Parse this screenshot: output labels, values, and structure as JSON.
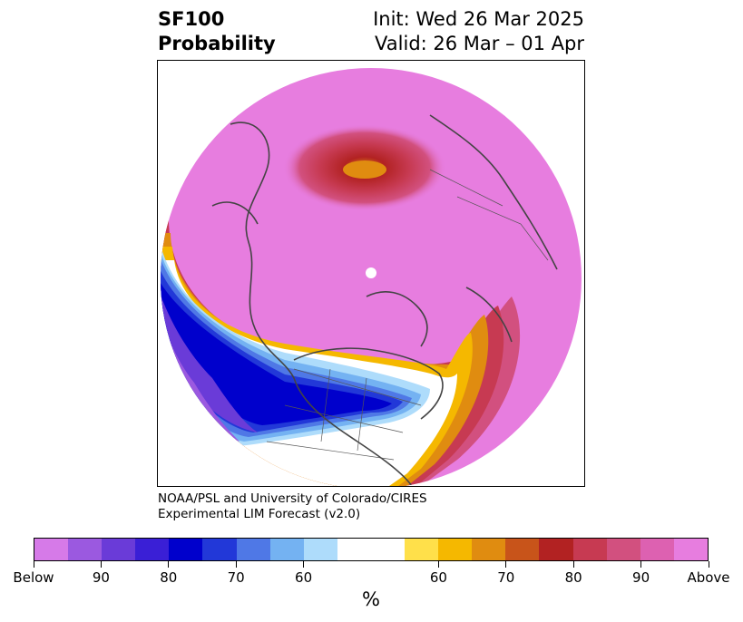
{
  "header": {
    "title_line1": "SF100",
    "title_line2": "Probability",
    "init": "Init: Wed 26 Mar 2025",
    "valid": "Valid: 26 Mar – 01 Apr"
  },
  "credit": {
    "line1": "NOAA/PSL and University of Colorado/CIRES",
    "line2": "Experimental LIM Forecast (v2.0)"
  },
  "colorbar": {
    "colors": [
      "#d67ae8",
      "#9b59e0",
      "#6a3bd8",
      "#3a1fd6",
      "#0000cc",
      "#2238d8",
      "#4f78e6",
      "#74b2f2",
      "#aedcfb",
      "#ffffff",
      "#ffffff",
      "#ffe04a",
      "#f5b800",
      "#e08c10",
      "#c8541a",
      "#b22222",
      "#c73a52",
      "#d2507f",
      "#dd61b1",
      "#e77ddf"
    ],
    "tick_labels": [
      "Below",
      "90",
      "80",
      "70",
      "60",
      "60",
      "70",
      "80",
      "90",
      "Above"
    ],
    "unit": "%"
  },
  "map": {
    "projection": "north-polar-stereographic",
    "background_anomaly_color": "#e77ddf",
    "coastline_color": "#444444"
  }
}
